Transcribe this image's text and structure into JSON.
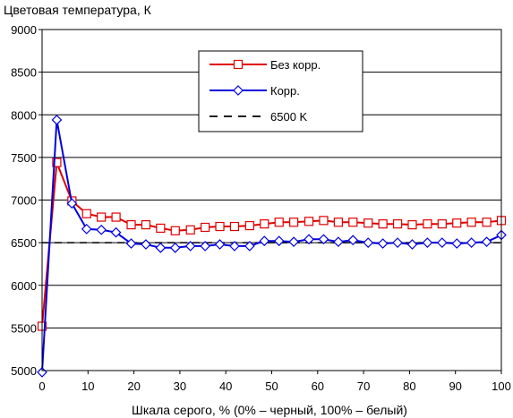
{
  "chart_data": {
    "type": "line",
    "title": "Цветовая температура, К",
    "xlabel": "Шкала серого, % (0% – черный, 100% – белый)",
    "ylabel": "",
    "xlim": [
      0,
      100
    ],
    "ylim": [
      5000,
      9000
    ],
    "xticks": [
      0,
      10,
      20,
      30,
      40,
      50,
      60,
      70,
      80,
      90,
      100
    ],
    "yticks": [
      5000,
      5500,
      6000,
      6500,
      7000,
      7500,
      8000,
      8500,
      9000
    ],
    "grid": "horizontal",
    "legend_position": "top-center",
    "series": [
      {
        "name": "Без корр.",
        "color": "#e00000",
        "marker": "square",
        "x": [
          0,
          3.2,
          6.5,
          9.7,
          12.9,
          16.1,
          19.4,
          22.6,
          25.8,
          29.0,
          32.3,
          35.5,
          38.7,
          41.9,
          45.2,
          48.4,
          51.6,
          54.8,
          58.1,
          61.3,
          64.5,
          67.7,
          71.0,
          74.2,
          77.4,
          80.6,
          83.9,
          87.1,
          90.3,
          93.5,
          96.8,
          100
        ],
        "y": [
          5520,
          7440,
          6990,
          6840,
          6800,
          6800,
          6710,
          6710,
          6670,
          6640,
          6650,
          6680,
          6690,
          6690,
          6700,
          6720,
          6740,
          6740,
          6750,
          6760,
          6740,
          6740,
          6730,
          6720,
          6720,
          6710,
          6720,
          6720,
          6730,
          6740,
          6740,
          6760
        ]
      },
      {
        "name": "Корр.",
        "color": "#0000e0",
        "marker": "diamond",
        "x": [
          0,
          3.2,
          6.5,
          9.7,
          12.9,
          16.1,
          19.4,
          22.6,
          25.8,
          29.0,
          32.3,
          35.5,
          38.7,
          41.9,
          45.2,
          48.4,
          51.6,
          54.8,
          58.1,
          61.3,
          64.5,
          67.7,
          71.0,
          74.2,
          77.4,
          80.6,
          83.9,
          87.1,
          90.3,
          93.5,
          96.8,
          100
        ],
        "y": [
          4980,
          7940,
          6960,
          6660,
          6650,
          6620,
          6490,
          6480,
          6440,
          6440,
          6460,
          6460,
          6480,
          6460,
          6460,
          6520,
          6520,
          6510,
          6540,
          6540,
          6510,
          6530,
          6500,
          6490,
          6500,
          6480,
          6500,
          6500,
          6490,
          6500,
          6510,
          6590
        ]
      },
      {
        "name": "6500 K",
        "color": "#000000",
        "marker": "none",
        "dashed": true,
        "x": [
          0,
          100
        ],
        "y": [
          6500,
          6500
        ]
      }
    ]
  }
}
